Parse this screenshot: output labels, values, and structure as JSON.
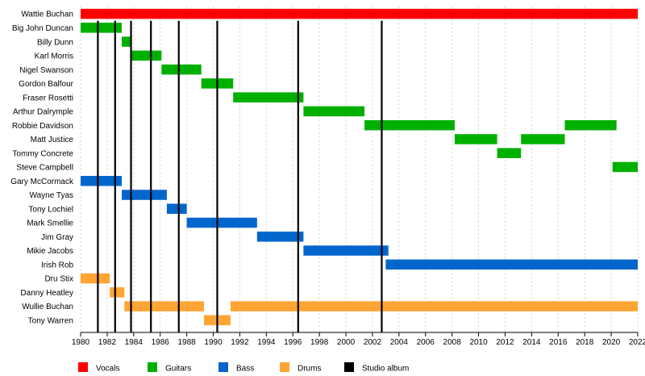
{
  "chart_data": {
    "type": "timeline",
    "x_range": [
      1980,
      2022
    ],
    "x_ticks": [
      1980,
      1982,
      1984,
      1986,
      1988,
      1990,
      1992,
      1994,
      1996,
      1998,
      2000,
      2002,
      2004,
      2006,
      2008,
      2010,
      2012,
      2014,
      2016,
      2018,
      2020,
      2022
    ],
    "grid": true,
    "legend_position": "bottom",
    "legend": [
      {
        "label": "Vocals",
        "color": "#ff0000",
        "kind": "box"
      },
      {
        "label": "Guitars",
        "color": "#00b000",
        "kind": "box"
      },
      {
        "label": "Bass",
        "color": "#0066cc",
        "kind": "box"
      },
      {
        "label": "Drums",
        "color": "#ffa533",
        "kind": "box"
      },
      {
        "label": "Studio album",
        "color": "#000000",
        "kind": "box"
      }
    ],
    "colors": {
      "Vocals": "#ff0000",
      "Guitars": "#00b000",
      "Bass": "#0066cc",
      "Drums": "#ffa533",
      "Studio album": "#000000"
    },
    "members": [
      {
        "name": "Wattie Buchan",
        "periods": [
          {
            "role": "Vocals",
            "start": 1980.0,
            "end": 2022.0
          }
        ]
      },
      {
        "name": "Big John Duncan",
        "periods": [
          {
            "role": "Guitars",
            "start": 1980.0,
            "end": 1983.1
          }
        ]
      },
      {
        "name": "Billy Dunn",
        "periods": [
          {
            "role": "Guitars",
            "start": 1983.1,
            "end": 1983.8
          }
        ]
      },
      {
        "name": "Karl Morris",
        "periods": [
          {
            "role": "Guitars",
            "start": 1983.8,
            "end": 1986.1
          }
        ]
      },
      {
        "name": "Nigel Swanson",
        "periods": [
          {
            "role": "Guitars",
            "start": 1986.1,
            "end": 1989.1
          }
        ]
      },
      {
        "name": "Gordon Balfour",
        "periods": [
          {
            "role": "Guitars",
            "start": 1989.1,
            "end": 1991.5
          }
        ]
      },
      {
        "name": "Fraser Rosetti",
        "periods": [
          {
            "role": "Guitars",
            "start": 1991.5,
            "end": 1996.8
          }
        ]
      },
      {
        "name": "Arthur Dalrymple",
        "periods": [
          {
            "role": "Guitars",
            "start": 1996.8,
            "end": 2001.4
          }
        ]
      },
      {
        "name": "Robbie Davidson",
        "periods": [
          {
            "role": "Guitars",
            "start": 2001.4,
            "end": 2008.2
          },
          {
            "role": "Guitars",
            "start": 2016.5,
            "end": 2020.4
          }
        ]
      },
      {
        "name": "Matt Justice",
        "periods": [
          {
            "role": "Guitars",
            "start": 2008.2,
            "end": 2011.4
          },
          {
            "role": "Guitars",
            "start": 2013.2,
            "end": 2016.5
          }
        ]
      },
      {
        "name": "Tommy Concrete",
        "periods": [
          {
            "role": "Guitars",
            "start": 2011.4,
            "end": 2013.2
          }
        ]
      },
      {
        "name": "Steve Campbell",
        "periods": [
          {
            "role": "Guitars",
            "start": 2020.1,
            "end": 2022.0
          }
        ]
      },
      {
        "name": "Gary McCormack",
        "periods": [
          {
            "role": "Bass",
            "start": 1980.0,
            "end": 1983.1
          }
        ]
      },
      {
        "name": "Wayne Tyas",
        "periods": [
          {
            "role": "Bass",
            "start": 1983.1,
            "end": 1986.5
          }
        ]
      },
      {
        "name": "Tony Lochiel",
        "periods": [
          {
            "role": "Bass",
            "start": 1986.5,
            "end": 1988.0
          }
        ]
      },
      {
        "name": "Mark Smellie",
        "periods": [
          {
            "role": "Bass",
            "start": 1988.0,
            "end": 1993.3
          }
        ]
      },
      {
        "name": "Jim Gray",
        "periods": [
          {
            "role": "Bass",
            "start": 1993.3,
            "end": 1996.8
          }
        ]
      },
      {
        "name": "Mikie Jacobs",
        "periods": [
          {
            "role": "Bass",
            "start": 1996.8,
            "end": 2003.2
          }
        ]
      },
      {
        "name": "Irish Rob",
        "periods": [
          {
            "role": "Bass",
            "start": 2003.0,
            "end": 2022.0
          }
        ]
      },
      {
        "name": "Dru Stix",
        "periods": [
          {
            "role": "Drums",
            "start": 1980.0,
            "end": 1982.2
          }
        ]
      },
      {
        "name": "Danny Heatley",
        "periods": [
          {
            "role": "Drums",
            "start": 1982.2,
            "end": 1983.3
          }
        ]
      },
      {
        "name": "Wullie Buchan",
        "periods": [
          {
            "role": "Drums",
            "start": 1983.3,
            "end": 1989.3
          },
          {
            "role": "Drums",
            "start": 1991.3,
            "end": 2022.0
          }
        ]
      },
      {
        "name": "Tony Warren",
        "periods": [
          {
            "role": "Drums",
            "start": 1989.3,
            "end": 1991.3
          }
        ]
      }
    ],
    "studio_albums": [
      1981.3,
      1982.6,
      1983.8,
      1985.3,
      1987.4,
      1990.3,
      1996.4,
      2002.7
    ]
  }
}
